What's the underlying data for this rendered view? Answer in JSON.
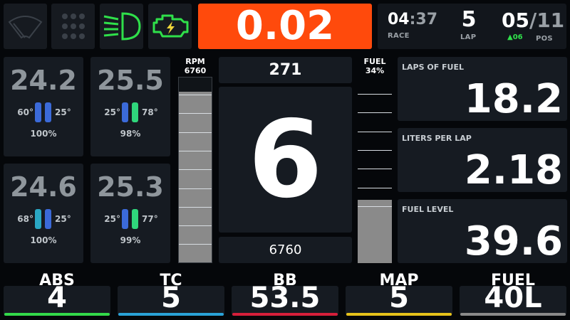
{
  "top_icons": [
    "wiper-icon",
    "keypad-grid-icon",
    "headlight-icon",
    "engine-warning-icon"
  ],
  "delta": "0.02",
  "session": {
    "time_big": "04",
    "time_small": ":37",
    "time_label": "RACE",
    "lap": "5",
    "lap_label": "LAP",
    "pos": "05",
    "pos_total": "/11",
    "pos_label": "POS",
    "pos_change": "06"
  },
  "tires": [
    {
      "temp": "24.2",
      "left": "60°",
      "right": "25°",
      "pct": "100%",
      "bar_left": "#3b6ad9",
      "bar_right": "#3b6ad9"
    },
    {
      "temp": "25.5",
      "left": "25°",
      "right": "78°",
      "pct": "98%",
      "bar_left": "#3b6ad9",
      "bar_right": "#2fd67c"
    },
    {
      "temp": "24.6",
      "left": "68°",
      "right": "25°",
      "pct": "100%",
      "bar_left": "#2aa7c4",
      "bar_right": "#3b6ad9"
    },
    {
      "temp": "25.3",
      "left": "25°",
      "right": "77°",
      "pct": "99%",
      "bar_left": "#3b6ad9",
      "bar_right": "#2fd67c"
    }
  ],
  "rpm_bar": {
    "label": "RPM",
    "value": "6760"
  },
  "fuel_bar": {
    "label": "FUEL",
    "value": "34%",
    "fraction": 0.34
  },
  "speed": "271",
  "gear": "6",
  "rpm": "6760",
  "stats": [
    {
      "label": "LAPS OF FUEL",
      "value": "18.2"
    },
    {
      "label": "LITERS PER LAP",
      "value": "2.18"
    },
    {
      "label": "FUEL LEVEL",
      "value": "39.6"
    }
  ],
  "bottom": [
    {
      "label": "ABS",
      "value": "4",
      "color": "#33d94a"
    },
    {
      "label": "TC",
      "value": "5",
      "color": "#2aa2d8"
    },
    {
      "label": "BB",
      "value": "53.5",
      "color": "#d61f3a"
    },
    {
      "label": "MAP",
      "value": "5",
      "color": "#e6c21a"
    },
    {
      "label": "FUEL",
      "value": "40L",
      "color": "#8a8a8a"
    }
  ]
}
